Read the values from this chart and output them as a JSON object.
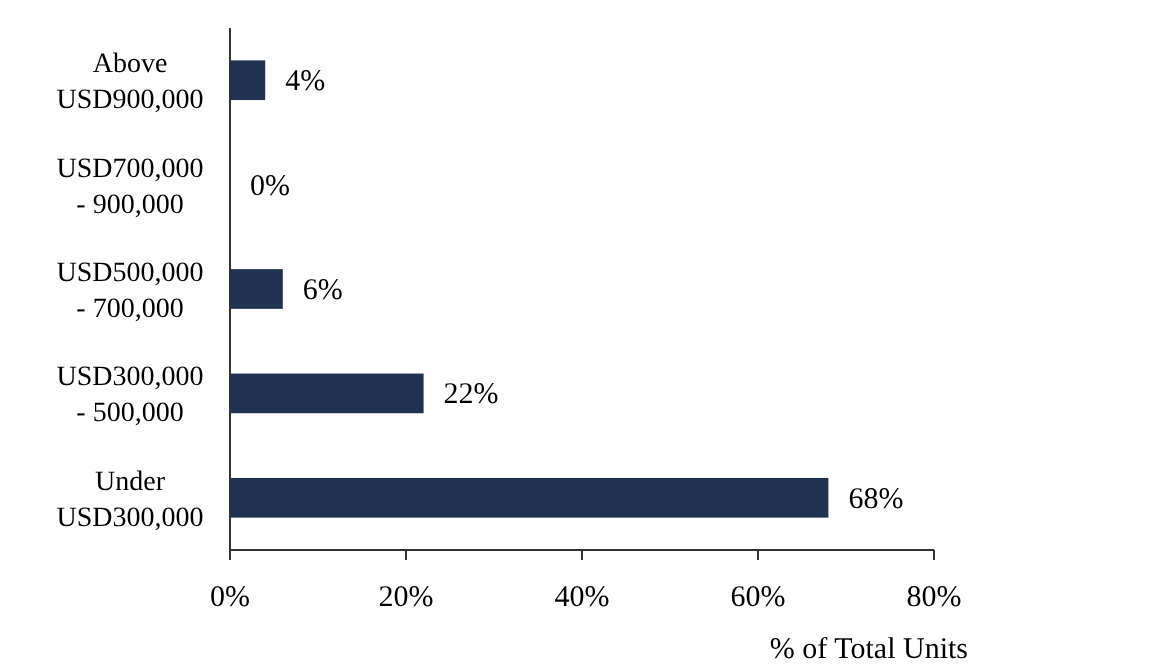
{
  "chart_data": {
    "type": "bar",
    "orientation": "horizontal",
    "xlabel": "% of Total Units",
    "categories": [
      "Above USD900,000",
      "USD700,000 - 900,000",
      "USD500,000 - 700,000",
      "USD300,000 - 500,000",
      "Under USD300,000"
    ],
    "values": [
      4,
      0,
      6,
      22,
      68
    ],
    "value_labels": [
      "4%",
      "0%",
      "6%",
      "22%",
      "68%"
    ],
    "color": "#1f3251",
    "xlim": [
      0,
      80
    ],
    "xticks": [
      {
        "value": 0,
        "label": "0%"
      },
      {
        "value": 20,
        "label": "20%"
      },
      {
        "value": 40,
        "label": "40%"
      },
      {
        "value": 60,
        "label": "60%"
      },
      {
        "value": 80,
        "label": "80%"
      }
    ],
    "grid": false
  }
}
